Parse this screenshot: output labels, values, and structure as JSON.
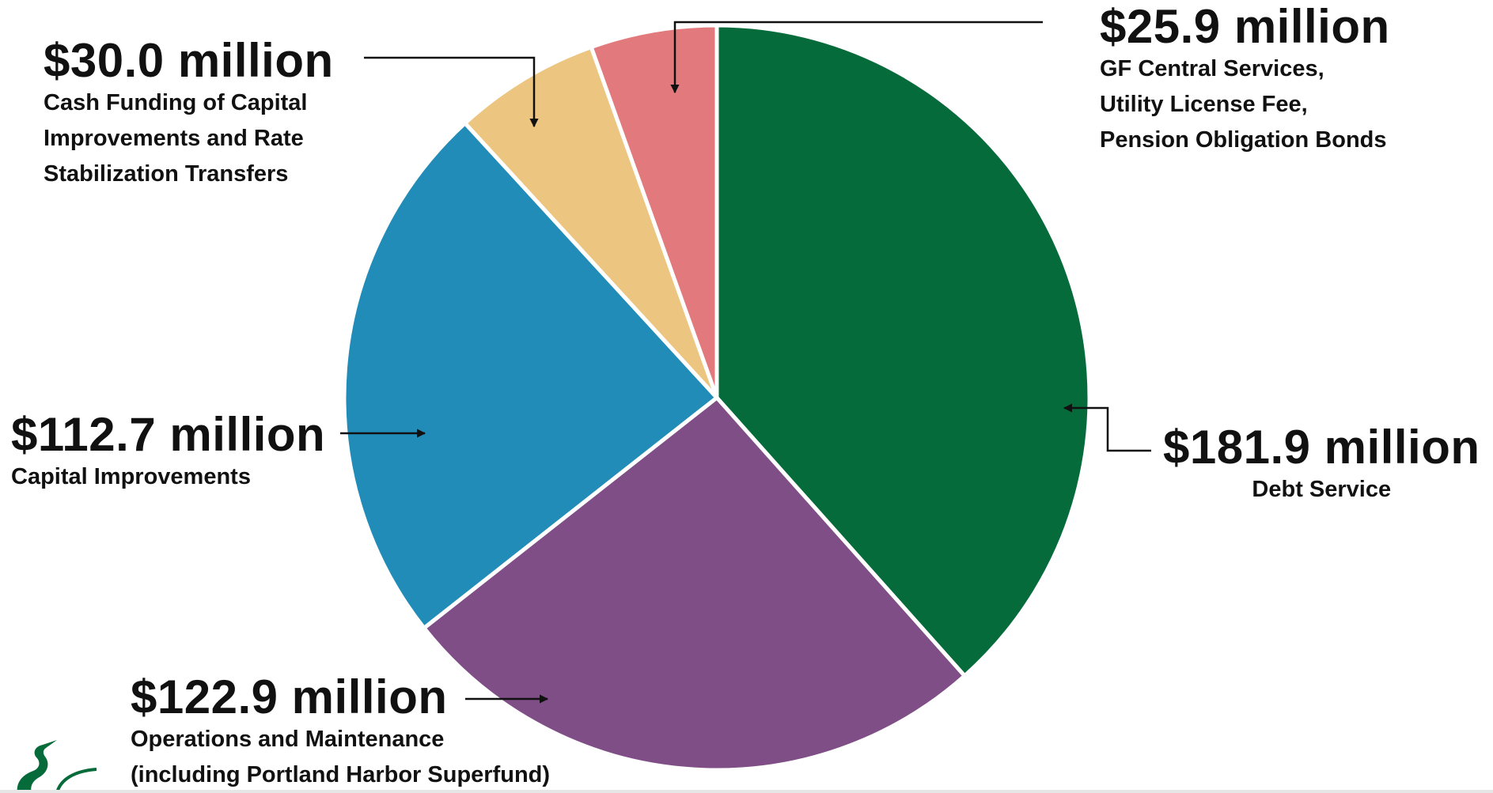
{
  "chart_data": {
    "type": "pie",
    "unit": "million",
    "slices": [
      {
        "key": "debt",
        "amount_label": "$181.9 million",
        "value": 181.9,
        "description": [
          "Debt Service"
        ],
        "color": "#066B3A"
      },
      {
        "key": "om",
        "amount_label": "$122.9 million",
        "value": 122.9,
        "description": [
          "Operations and Maintenance",
          "(including Portland Harbor Superfund)"
        ],
        "color": "#7F4E86"
      },
      {
        "key": "cap",
        "amount_label": "$112.7 million",
        "value": 112.7,
        "description": [
          "Capital Improvements"
        ],
        "color": "#228CB8"
      },
      {
        "key": "cash",
        "amount_label": "$30.0 million",
        "value": 30.0,
        "description": [
          "Cash Funding of Capital",
          "Improvements and Rate",
          "Stabilization Transfers"
        ],
        "color": "#ECC580"
      },
      {
        "key": "gf",
        "amount_label": "$25.9 million",
        "value": 25.9,
        "description": [
          "GF Central Services,",
          "Utility License Fee,",
          "Pension Obligation Bonds"
        ],
        "color": "#E27A7D"
      }
    ],
    "start_angle": "12 o'clock",
    "direction": "clockwise"
  },
  "logo": {
    "icon": "heron-icon",
    "color": "#066B3A"
  }
}
